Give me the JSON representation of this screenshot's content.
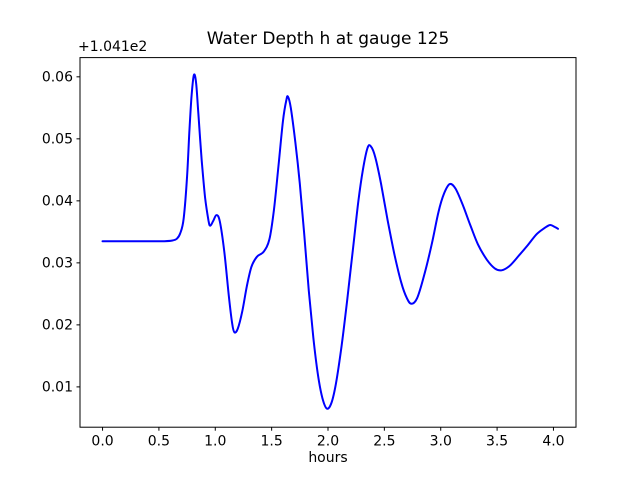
{
  "chart_data": {
    "type": "line",
    "title": "Water Depth h at gauge 125",
    "xlabel": "hours",
    "ylabel": "",
    "grid": false,
    "legend_position": "none",
    "line_color": "#0000ff",
    "line_width": 2,
    "axis_color": "#000000",
    "background_color": "#ffffff",
    "xlim": [
      -0.2,
      4.2
    ],
    "ylim": [
      0.0035,
      0.0631
    ],
    "x_ticks": {
      "values": [
        0,
        0.5,
        1,
        1.5,
        2,
        2.5,
        3,
        3.5,
        4
      ],
      "labels": [
        "0.0",
        "0.5",
        "1.0",
        "1.5",
        "2.0",
        "2.5",
        "3.0",
        "3.5",
        "4.0"
      ]
    },
    "y_ticks": {
      "values": [
        0.01,
        0.02,
        0.03,
        0.04,
        0.05,
        0.06
      ],
      "labels": [
        "0.01",
        "0.02",
        "0.03",
        "0.04",
        "0.05",
        "0.06"
      ]
    },
    "y_offset_label": "+1.041e2",
    "y_offset_value": 104.1,
    "series": [
      {
        "name": "h at gauge 125",
        "x": [
          0.0,
          0.15,
          0.3,
          0.45,
          0.55,
          0.62,
          0.66,
          0.69,
          0.72,
          0.75,
          0.77,
          0.79,
          0.81,
          0.83,
          0.85,
          0.88,
          0.91,
          0.94,
          0.955,
          0.98,
          1.01,
          1.04,
          1.08,
          1.12,
          1.15,
          1.17,
          1.2,
          1.24,
          1.28,
          1.32,
          1.37,
          1.43,
          1.48,
          1.52,
          1.56,
          1.6,
          1.63,
          1.645,
          1.67,
          1.71,
          1.75,
          1.79,
          1.83,
          1.87,
          1.91,
          1.95,
          1.99,
          2.03,
          2.07,
          2.12,
          2.17,
          2.22,
          2.27,
          2.31,
          2.35,
          2.38,
          2.42,
          2.47,
          2.53,
          2.59,
          2.65,
          2.7,
          2.74,
          2.79,
          2.85,
          2.92,
          2.98,
          3.03,
          3.08,
          3.13,
          3.19,
          3.26,
          3.33,
          3.41,
          3.48,
          3.54,
          3.61,
          3.69,
          3.77,
          3.85,
          3.92,
          3.97,
          4.01,
          4.04
        ],
        "y": [
          0.0335,
          0.0335,
          0.0335,
          0.0335,
          0.0335,
          0.0336,
          0.0339,
          0.0348,
          0.0372,
          0.044,
          0.051,
          0.057,
          0.0603,
          0.059,
          0.054,
          0.0465,
          0.0405,
          0.0368,
          0.036,
          0.0367,
          0.0377,
          0.0367,
          0.0318,
          0.0247,
          0.0202,
          0.0188,
          0.0194,
          0.0222,
          0.0262,
          0.0293,
          0.031,
          0.0318,
          0.0338,
          0.0385,
          0.0455,
          0.0528,
          0.0562,
          0.0568,
          0.055,
          0.0495,
          0.0428,
          0.0345,
          0.0255,
          0.018,
          0.012,
          0.0082,
          0.0065,
          0.0074,
          0.0105,
          0.0165,
          0.024,
          0.032,
          0.04,
          0.045,
          0.0485,
          0.0488,
          0.047,
          0.0428,
          0.0368,
          0.0313,
          0.0268,
          0.0243,
          0.0234,
          0.0243,
          0.0278,
          0.033,
          0.0382,
          0.0412,
          0.0427,
          0.042,
          0.0396,
          0.0362,
          0.033,
          0.0305,
          0.0291,
          0.0288,
          0.0295,
          0.0311,
          0.0328,
          0.0346,
          0.0356,
          0.0361,
          0.0358,
          0.0355
        ]
      }
    ]
  }
}
